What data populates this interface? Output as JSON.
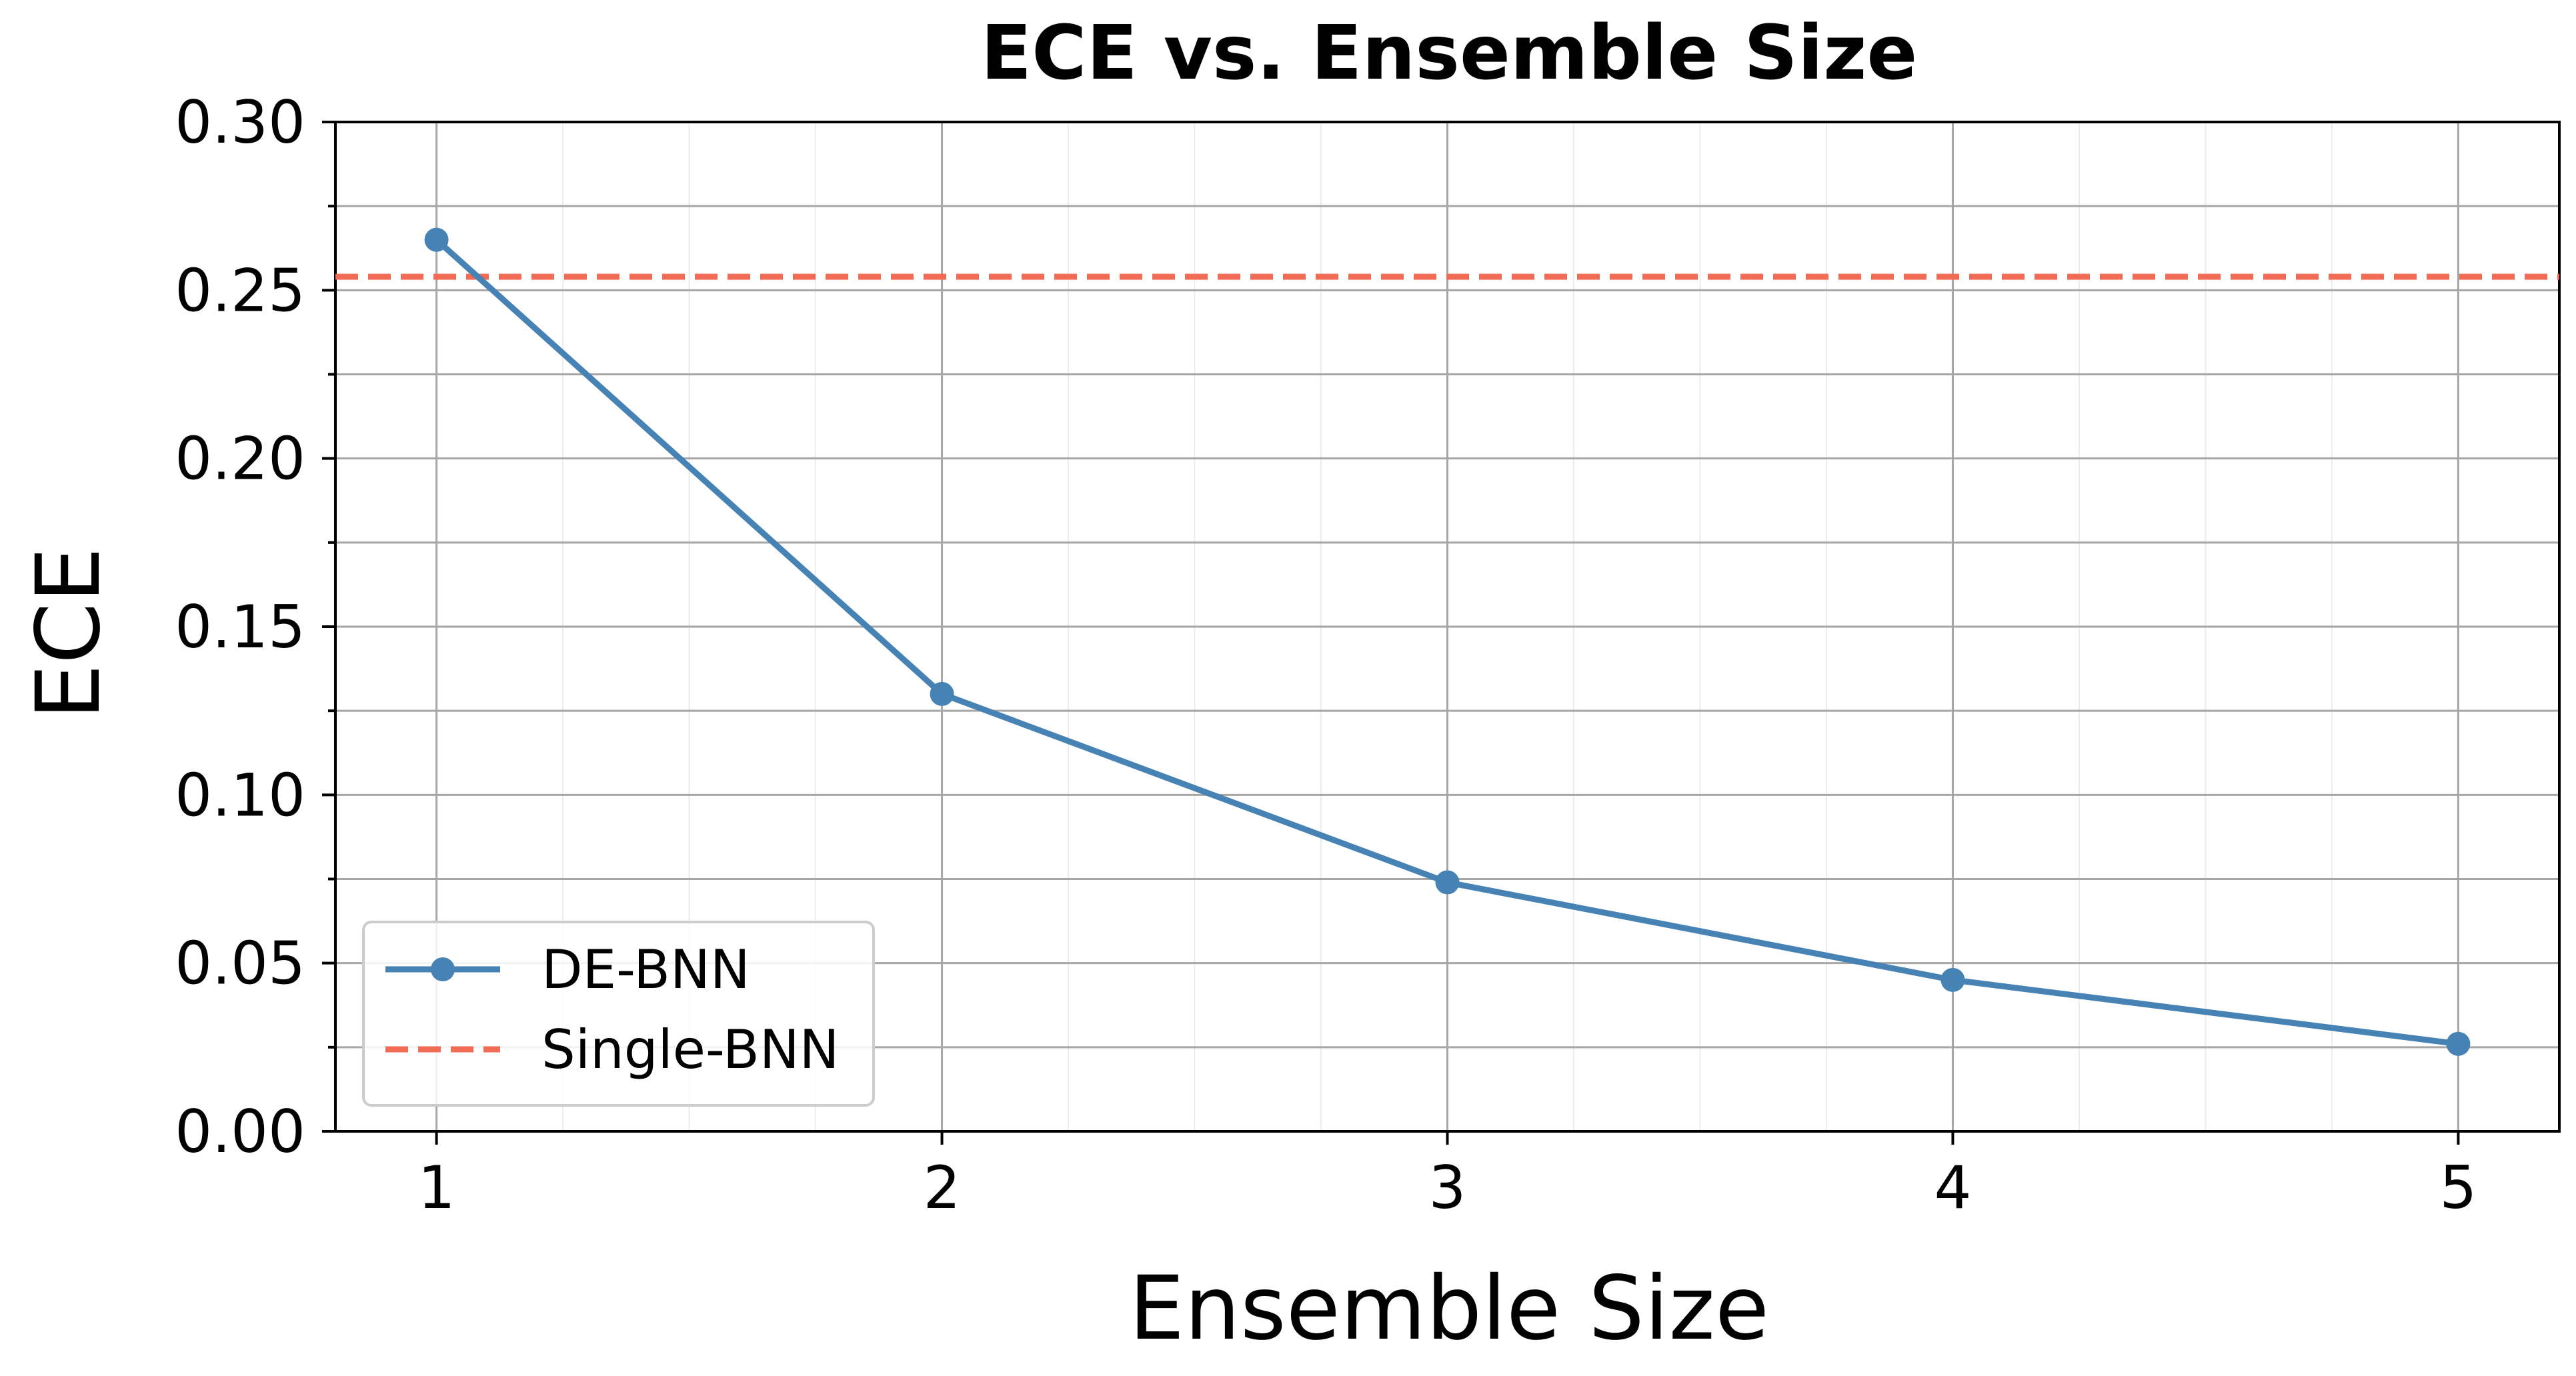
{
  "chart_data": {
    "type": "line",
    "title": "ECE vs. Ensemble Size",
    "xlabel": "Ensemble Size",
    "ylabel": "ECE",
    "x": [
      1,
      2,
      3,
      4,
      5
    ],
    "xticks": [
      "1",
      "2",
      "3",
      "4",
      "5"
    ],
    "xlim": [
      0.8,
      5.2
    ],
    "ylim": [
      0.0,
      0.3
    ],
    "yticks": [
      "0.00",
      "0.05",
      "0.10",
      "0.15",
      "0.20",
      "0.25",
      "0.30"
    ],
    "grid": true,
    "legend_position": "lower-left",
    "series": [
      {
        "name": "DE-BNN",
        "style": "solid-line-with-markers",
        "color": "#4682b4",
        "values": [
          0.265,
          0.13,
          0.074,
          0.045,
          0.026
        ]
      }
    ],
    "reference_lines": [
      {
        "name": "Single-BNN",
        "orientation": "horizontal",
        "style": "dashed",
        "color": "#f26b55",
        "value": 0.254
      }
    ]
  }
}
